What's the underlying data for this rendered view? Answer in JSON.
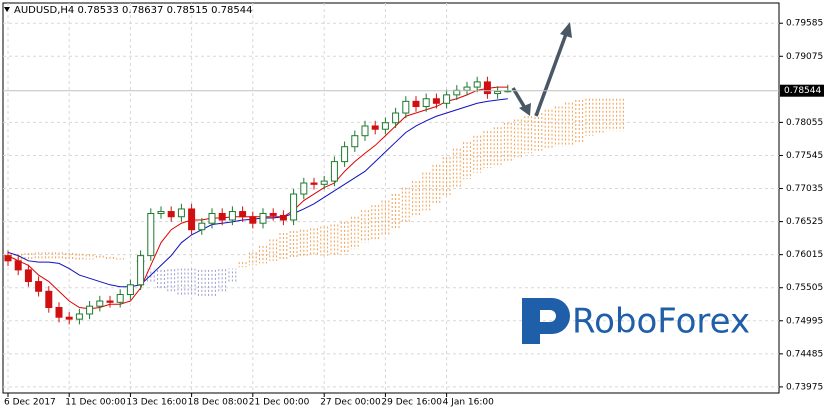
{
  "chart_data": {
    "type": "candlestick",
    "title": "AUDUSD,H4",
    "open": [
      0.76,
      0.7592,
      0.7578,
      0.756,
      0.7545,
      0.752,
      0.7505,
      0.7502,
      0.751,
      0.7522,
      0.753,
      0.7528,
      0.754,
      0.7555,
      0.76,
      0.7665,
      0.7668,
      0.766,
      0.7672,
      0.764,
      0.765,
      0.7665,
      0.7655,
      0.7668,
      0.766,
      0.765,
      0.7665,
      0.7662,
      0.7655,
      0.7695,
      0.7712,
      0.771,
      0.7715,
      0.7745,
      0.7768,
      0.7785,
      0.78,
      0.7795,
      0.7805,
      0.782,
      0.7838,
      0.783,
      0.7842,
      0.7835,
      0.7848,
      0.7855,
      0.786,
      0.7868,
      0.785,
      0.78533
    ],
    "high": [
      0.7608,
      0.76,
      0.7586,
      0.7568,
      0.7553,
      0.7528,
      0.7513,
      0.7518,
      0.753,
      0.7538,
      0.7538,
      0.7548,
      0.7563,
      0.7608,
      0.7673,
      0.7676,
      0.7676,
      0.768,
      0.768,
      0.7658,
      0.7673,
      0.7673,
      0.7676,
      0.7676,
      0.7668,
      0.7673,
      0.7673,
      0.767,
      0.7703,
      0.772,
      0.772,
      0.7723,
      0.7753,
      0.7776,
      0.7793,
      0.7808,
      0.7808,
      0.7813,
      0.7828,
      0.7846,
      0.7846,
      0.785,
      0.785,
      0.7856,
      0.7863,
      0.7868,
      0.7876,
      0.7876,
      0.78613,
      0.78637
    ],
    "low": [
      0.7584,
      0.757,
      0.7552,
      0.7537,
      0.7512,
      0.7497,
      0.7494,
      0.7494,
      0.7502,
      0.7514,
      0.752,
      0.752,
      0.7532,
      0.7547,
      0.7592,
      0.7657,
      0.7652,
      0.7652,
      0.7632,
      0.7632,
      0.7642,
      0.7647,
      0.7647,
      0.7652,
      0.7642,
      0.7642,
      0.7654,
      0.7647,
      0.7647,
      0.7687,
      0.7702,
      0.7702,
      0.7707,
      0.7737,
      0.776,
      0.7777,
      0.7787,
      0.7787,
      0.7797,
      0.7812,
      0.7822,
      0.7822,
      0.7827,
      0.7827,
      0.784,
      0.7847,
      0.7852,
      0.7842,
      0.7842,
      0.78515
    ],
    "close": [
      0.7592,
      0.7578,
      0.756,
      0.7545,
      0.752,
      0.7505,
      0.7502,
      0.751,
      0.7522,
      0.753,
      0.7528,
      0.754,
      0.7555,
      0.76,
      0.7665,
      0.7668,
      0.766,
      0.7672,
      0.764,
      0.765,
      0.7665,
      0.7655,
      0.7668,
      0.766,
      0.765,
      0.7665,
      0.7662,
      0.7655,
      0.7695,
      0.7712,
      0.771,
      0.7715,
      0.7745,
      0.7768,
      0.7785,
      0.78,
      0.7795,
      0.7805,
      0.782,
      0.7838,
      0.783,
      0.7842,
      0.7835,
      0.7848,
      0.7855,
      0.786,
      0.7868,
      0.785,
      0.78533,
      0.78544
    ],
    "up_color": "#1e7a2e",
    "down_color": "#d01010",
    "lines": [
      {
        "color": "#e00000",
        "values": [
          0.76,
          0.7592,
          0.7585,
          0.757,
          0.756,
          0.7545,
          0.753,
          0.752,
          0.7518,
          0.752,
          0.7525,
          0.7525,
          0.753,
          0.755,
          0.7585,
          0.762,
          0.764,
          0.765,
          0.7655,
          0.7655,
          0.7658,
          0.7658,
          0.766,
          0.766,
          0.766,
          0.766,
          0.766,
          0.766,
          0.767,
          0.7685,
          0.7695,
          0.7705,
          0.7712,
          0.773,
          0.7745,
          0.7758,
          0.777,
          0.7785,
          0.78,
          0.7815,
          0.782,
          0.7825,
          0.783,
          0.7838,
          0.7842,
          0.7848,
          0.7855,
          0.7858,
          0.786,
          0.786
        ]
      },
      {
        "color": "#1010c0",
        "values": [
          0.7605,
          0.76,
          0.7592,
          0.759,
          0.759,
          0.7588,
          0.758,
          0.757,
          0.7565,
          0.756,
          0.7555,
          0.7552,
          0.7552,
          0.7555,
          0.757,
          0.7585,
          0.76,
          0.762,
          0.7632,
          0.764,
          0.7648,
          0.765,
          0.7652,
          0.7655,
          0.7656,
          0.7658,
          0.7658,
          0.766,
          0.7665,
          0.7672,
          0.768,
          0.769,
          0.77,
          0.771,
          0.772,
          0.773,
          0.7745,
          0.776,
          0.7775,
          0.779,
          0.78,
          0.7808,
          0.7815,
          0.782,
          0.7825,
          0.783,
          0.7835,
          0.7838,
          0.784,
          0.7842
        ]
      }
    ],
    "cloud": {
      "span_a": [
        0.7602,
        0.7603,
        0.7604,
        0.7605,
        0.7605,
        0.7605,
        0.7604,
        0.7603,
        0.7602,
        0.76,
        0.7598,
        0.7596,
        0.7594,
        0.759,
        0.756,
        0.755,
        0.7545,
        0.754,
        0.754,
        0.7538,
        0.7538,
        0.7545,
        0.756,
        0.759,
        0.7605,
        0.7615,
        0.7625,
        0.7635,
        0.7638,
        0.764,
        0.7642,
        0.7645,
        0.7648,
        0.7652,
        0.766,
        0.767,
        0.7678,
        0.7685,
        0.7695,
        0.7705,
        0.7715,
        0.7728,
        0.774,
        0.7752,
        0.7765,
        0.7775,
        0.7785,
        0.7792,
        0.7798,
        0.7805,
        0.781,
        0.7815,
        0.782,
        0.7825,
        0.783,
        0.7836,
        0.784,
        0.7842,
        0.7842,
        0.7842,
        0.7842
      ],
      "span_b": [
        0.7594,
        0.7594,
        0.7594,
        0.7594,
        0.7594,
        0.7594,
        0.7594,
        0.7594,
        0.7594,
        0.7594,
        0.7594,
        0.7594,
        0.7594,
        0.7594,
        0.758,
        0.758,
        0.758,
        0.758,
        0.758,
        0.758,
        0.758,
        0.758,
        0.758,
        0.7582,
        0.7585,
        0.7588,
        0.7592,
        0.7595,
        0.7597,
        0.7598,
        0.76,
        0.76,
        0.76,
        0.7602,
        0.761,
        0.762,
        0.7625,
        0.763,
        0.764,
        0.765,
        0.766,
        0.767,
        0.768,
        0.769,
        0.7705,
        0.7718,
        0.7728,
        0.7735,
        0.774,
        0.7745,
        0.7752,
        0.7758,
        0.7762,
        0.7766,
        0.7768,
        0.777,
        0.7775,
        0.7785,
        0.779,
        0.7792,
        0.7792
      ],
      "bull_color": "#f0a050",
      "bear_color": "#9a9ad0"
    },
    "ylim": [
      0.73881,
      0.79897
    ],
    "yticks": [
      0.79585,
      0.79075,
      0.78055,
      0.77545,
      0.77035,
      0.76525,
      0.76015,
      0.75505,
      0.74995,
      0.74485,
      0.73975
    ],
    "xticks": [
      {
        "value": 0,
        "label": "6 Dec 2017"
      },
      {
        "value": 6,
        "label": "11 Dec 00:00"
      },
      {
        "value": 12,
        "label": "13 Dec 16:00"
      },
      {
        "value": 18,
        "label": "18 Dec 08:00"
      },
      {
        "value": 24,
        "label": "21 Dec 00:00"
      },
      {
        "value": 31,
        "label": "27 Dec 00:00"
      },
      {
        "value": 37,
        "label": "29 Dec 16:00"
      },
      {
        "value": 43,
        "label": "4 Jan 16:00"
      }
    ],
    "grid": true,
    "logo": "RoboForex"
  }
}
